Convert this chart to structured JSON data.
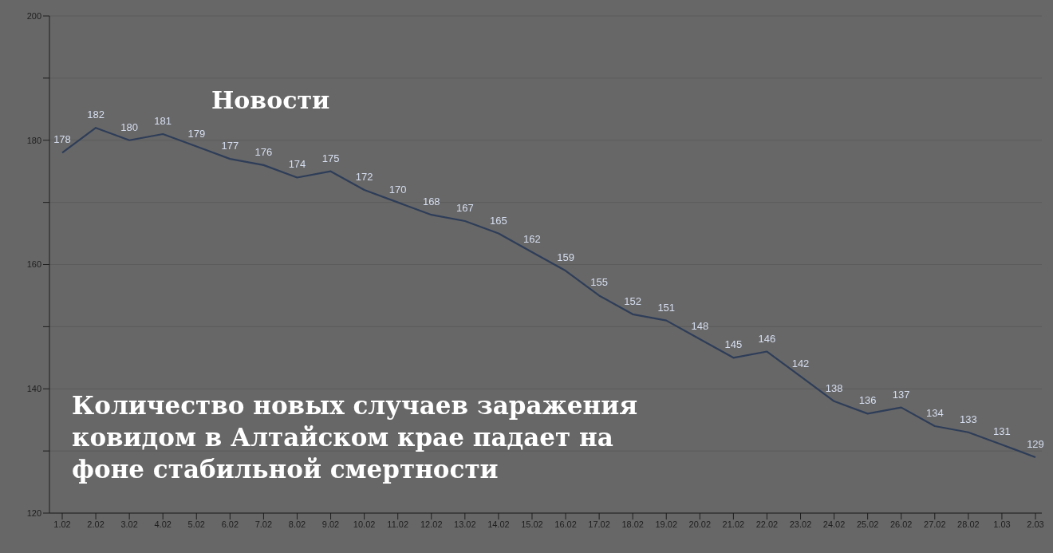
{
  "chart_data": {
    "type": "line",
    "title": "Количество новых случаев заражения ковидом в Алтайском крае падает на фоне стабильной смертности",
    "annotations": [
      "Новости"
    ],
    "categories": [
      "1.02",
      "2.02",
      "3.02",
      "4.02",
      "5.02",
      "6.02",
      "7.02",
      "8.02",
      "9.02",
      "10.02",
      "11.02",
      "12.02",
      "13.02",
      "14.02",
      "15.02",
      "16.02",
      "17.02",
      "18.02",
      "19.02",
      "20.02",
      "21.02",
      "22.02",
      "23.02",
      "24.02",
      "25.02",
      "26.02",
      "27.02",
      "28.02",
      "1.03",
      "2.03"
    ],
    "series": [
      {
        "color": "#2e3d58",
        "values": [
          178,
          182,
          180,
          181,
          179,
          177,
          176,
          174,
          175,
          172,
          170,
          168,
          167,
          165,
          162,
          159,
          155,
          152,
          151,
          148,
          145,
          146,
          142,
          138,
          136,
          137,
          134,
          133,
          131,
          129
        ]
      }
    ],
    "ylim": [
      120,
      200
    ],
    "yticks": [
      120,
      {
        "value": 130,
        "label": null
      },
      140,
      {
        "value": 150,
        "label": null
      },
      160,
      {
        "value": 170,
        "label": null
      },
      180,
      {
        "value": 190,
        "label": null
      },
      200
    ],
    "grid": "y",
    "data_labels": true,
    "marker": "none",
    "line_style": "solid"
  }
}
